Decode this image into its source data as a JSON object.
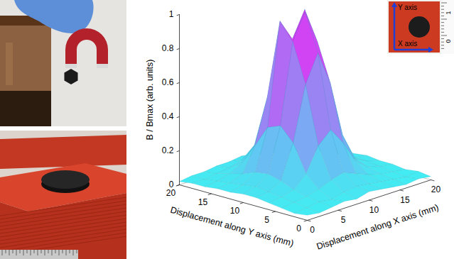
{
  "chart_data": {
    "type": "surface",
    "xlabel": "Displacement along X axis (mm)",
    "ylabel": "Displacement along Y axis (mm)",
    "zlabel": "B / Bmax (arb. units)",
    "x": [
      0,
      2,
      4,
      6,
      8,
      10,
      12,
      14,
      16,
      18,
      20
    ],
    "y": [
      0,
      2,
      4,
      6,
      8,
      10,
      12,
      14,
      16,
      18,
      20
    ],
    "z": [
      [
        0.03,
        0.02,
        0.03,
        0.04,
        0.03,
        0.05,
        0.04,
        0.03,
        0.02,
        0.03,
        0.02
      ],
      [
        0.02,
        0.03,
        0.04,
        0.03,
        0.05,
        0.06,
        0.05,
        0.04,
        0.03,
        0.02,
        0.03
      ],
      [
        0.03,
        0.04,
        0.05,
        0.07,
        0.1,
        0.12,
        0.09,
        0.06,
        0.04,
        0.03,
        0.02
      ],
      [
        0.04,
        0.05,
        0.07,
        0.14,
        0.28,
        0.35,
        0.25,
        0.12,
        0.06,
        0.04,
        0.03
      ],
      [
        0.05,
        0.06,
        0.1,
        0.3,
        0.62,
        0.78,
        0.58,
        0.25,
        0.09,
        0.05,
        0.03
      ],
      [
        0.05,
        0.07,
        0.12,
        0.38,
        0.85,
        1,
        0.8,
        0.32,
        0.1,
        0.05,
        0.04
      ],
      [
        0.04,
        0.06,
        0.11,
        0.35,
        0.95,
        0.82,
        0.97,
        0.3,
        0.09,
        0.05,
        0.03
      ],
      [
        0.04,
        0.05,
        0.08,
        0.22,
        0.48,
        0.6,
        0.45,
        0.18,
        0.07,
        0.04,
        0.03
      ],
      [
        0.03,
        0.04,
        0.06,
        0.1,
        0.18,
        0.22,
        0.16,
        0.08,
        0.05,
        0.03,
        0.02
      ],
      [
        0.03,
        0.03,
        0.04,
        0.05,
        0.07,
        0.08,
        0.06,
        0.05,
        0.03,
        0.03,
        0.02
      ],
      [
        0.02,
        0.03,
        0.03,
        0.04,
        0.04,
        0.05,
        0.04,
        0.03,
        0.03,
        0.02,
        0.02
      ]
    ],
    "xlim": [
      0,
      20
    ],
    "ylim": [
      0,
      20
    ],
    "zlim": [
      0,
      1
    ],
    "xticks": [
      0,
      5,
      10,
      15,
      20
    ],
    "yticks": [
      0,
      5,
      10,
      15,
      20
    ],
    "zticks": [
      0,
      0.2,
      0.4,
      0.6,
      0.8,
      1
    ]
  },
  "inset": {
    "x_axis_label": "X axis",
    "y_axis_label": "Y axis",
    "ruler_labels": [
      "1",
      "0"
    ]
  }
}
